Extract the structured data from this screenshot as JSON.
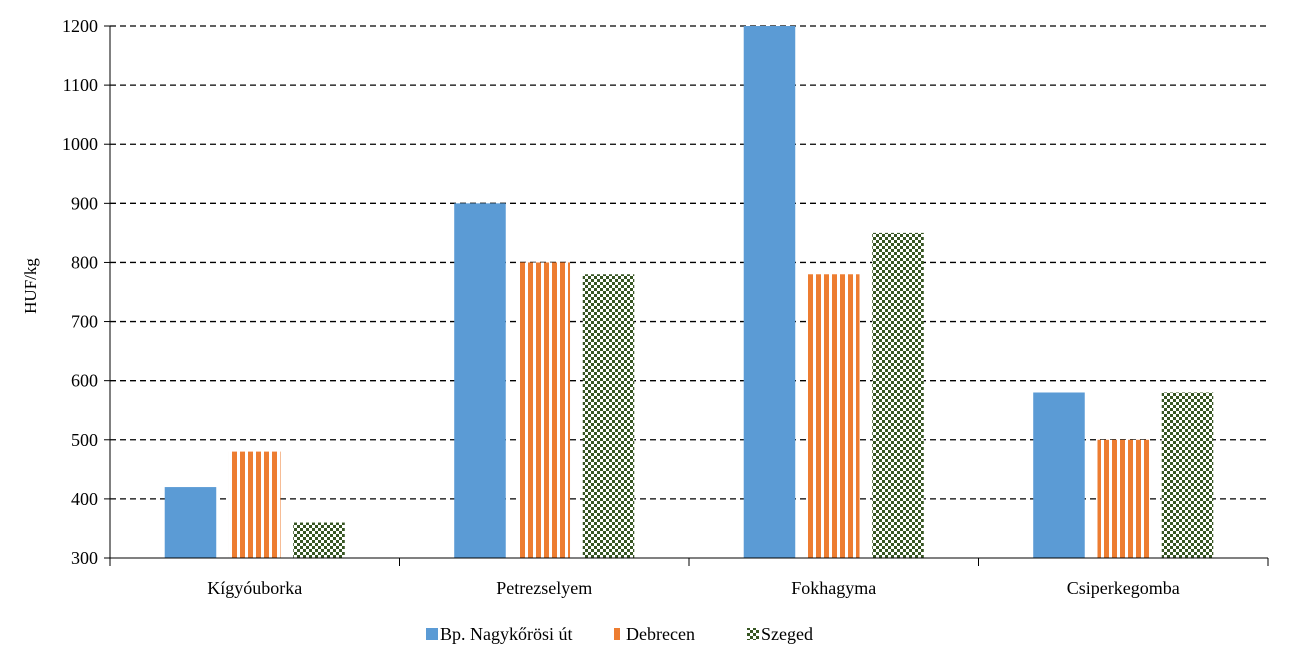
{
  "chart_data": {
    "type": "bar",
    "title": "",
    "xlabel": "",
    "ylabel": "HUF/kg",
    "ylim": [
      300,
      1200
    ],
    "yticks": [
      300,
      400,
      500,
      600,
      700,
      800,
      900,
      1000,
      1100,
      1200
    ],
    "grid": "horizontal dashed",
    "legend_position": "bottom",
    "categories": [
      "Kígyóuborka",
      "Petrezselyem",
      "Fokhagyma",
      "Csiperkegomba"
    ],
    "series": [
      {
        "name": "Bp. Nagykőrösi út",
        "values": [
          420,
          900,
          1200,
          580
        ],
        "color": "#5b9bd5",
        "pattern": "solid"
      },
      {
        "name": "Debrecen",
        "values": [
          480,
          800,
          780,
          500
        ],
        "color": "#ed7d31",
        "pattern": "vertical-stripes"
      },
      {
        "name": "Szeged",
        "values": [
          360,
          780,
          850,
          580
        ],
        "color": "#375623",
        "pattern": "checkerboard"
      }
    ]
  }
}
